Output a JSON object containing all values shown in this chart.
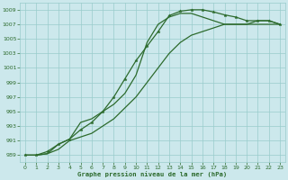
{
  "title": "Graphe pression niveau de la mer (hPa)",
  "bg_color": "#cce8ec",
  "grid_color": "#99cccc",
  "line_color": "#2d6b2d",
  "xlim": [
    -0.5,
    23.5
  ],
  "ylim": [
    988,
    1010
  ],
  "yticks": [
    989,
    991,
    993,
    995,
    997,
    999,
    1001,
    1003,
    1005,
    1007,
    1009
  ],
  "xticks": [
    0,
    1,
    2,
    3,
    4,
    5,
    6,
    7,
    8,
    9,
    10,
    11,
    12,
    13,
    14,
    15,
    16,
    17,
    18,
    19,
    20,
    21,
    22,
    23
  ],
  "line1_x": [
    0,
    1,
    2,
    3,
    4,
    5,
    6,
    7,
    8,
    9,
    10,
    11,
    12,
    13,
    14,
    15,
    16,
    17,
    18,
    19,
    20,
    21,
    22,
    23
  ],
  "line1_y": [
    989,
    989,
    989.5,
    990.5,
    991.2,
    992.5,
    993.5,
    995,
    997,
    999.5,
    1002,
    1004,
    1006,
    1008.2,
    1008.8,
    1009,
    1009,
    1008.7,
    1008.3,
    1008,
    1007.5,
    1007.5,
    1007.5,
    1007
  ],
  "line2_x": [
    0,
    1,
    2,
    3,
    4,
    5,
    6,
    7,
    8,
    9,
    10,
    11,
    12,
    13,
    14,
    15,
    16,
    17,
    18,
    19,
    20,
    21,
    22,
    23
  ],
  "line2_y": [
    989,
    989,
    989.2,
    990.5,
    991.2,
    993.5,
    994,
    995,
    996,
    997.5,
    1000,
    1004.5,
    1007,
    1008,
    1008.5,
    1008.5,
    1008,
    1007.5,
    1007,
    1007,
    1007,
    1007.5,
    1007.5,
    1007
  ],
  "line3_x": [
    0,
    1,
    2,
    3,
    4,
    5,
    6,
    7,
    8,
    9,
    10,
    11,
    12,
    13,
    14,
    15,
    16,
    17,
    18,
    19,
    20,
    21,
    22,
    23
  ],
  "line3_y": [
    989,
    989,
    989.2,
    989.8,
    991,
    991.5,
    992,
    993,
    994,
    995.5,
    997,
    999,
    1001,
    1003,
    1004.5,
    1005.5,
    1006,
    1006.5,
    1007,
    1007,
    1007,
    1007,
    1007,
    1007
  ]
}
